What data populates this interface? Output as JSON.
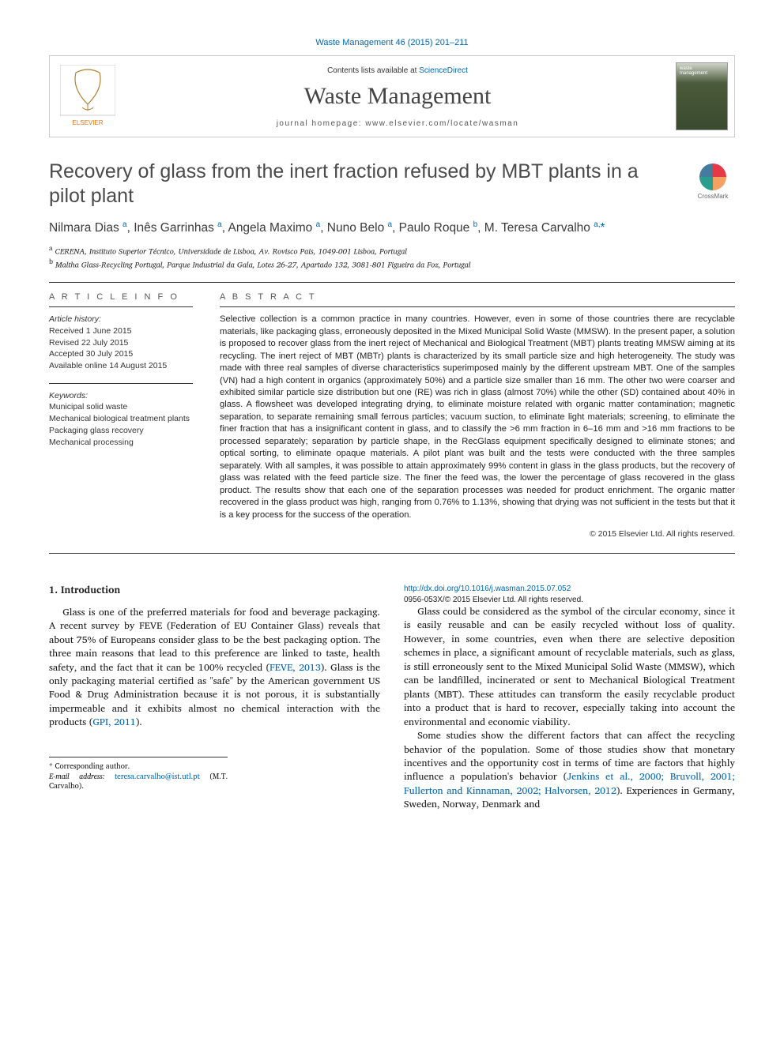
{
  "citation_top": "Waste Management 46 (2015) 201–211",
  "header": {
    "contents_prefix": "Contents lists available at ",
    "contents_link": "ScienceDirect",
    "journal_name": "Waste Management",
    "homepage_label": "journal homepage: ",
    "homepage_url": "www.elsevier.com/locate/wasman"
  },
  "title": "Recovery of glass from the inert fraction refused by MBT plants in a pilot plant",
  "crossmark_label": "CrossMark",
  "authors_html": "Nilmara Dias <sup>a</sup>, Inês Garrinhas <sup>a</sup>, Angela Maximo <sup>a</sup>, Nuno Belo <sup>a</sup>, Paulo Roque <sup>b</sup>, M. Teresa Carvalho <sup>a,</sup><span class='star'>*</span>",
  "affiliations": {
    "a": "CERENA, Instituto Superior Técnico, Universidade de Lisboa, Av. Rovisco Pais, 1049-001 Lisboa, Portugal",
    "b": "Maltha Glass-Recycling Portugal, Parque Industrial da Gala, Lotes 26-27, Apartado 132, 3081-801 Figueira da Foz, Portugal"
  },
  "article_info": {
    "heading": "A R T I C L E   I N F O",
    "history_label": "Article history:",
    "received": "Received 1 June 2015",
    "revised": "Revised 22 July 2015",
    "accepted": "Accepted 30 July 2015",
    "online": "Available online 14 August 2015",
    "keywords_label": "Keywords:",
    "keywords": [
      "Municipal solid waste",
      "Mechanical biological treatment plants",
      "Packaging glass recovery",
      "Mechanical processing"
    ]
  },
  "abstract": {
    "heading": "A B S T R A C T",
    "text": "Selective collection is a common practice in many countries. However, even in some of those countries there are recyclable materials, like packaging glass, erroneously deposited in the Mixed Municipal Solid Waste (MMSW). In the present paper, a solution is proposed to recover glass from the inert reject of Mechanical and Biological Treatment (MBT) plants treating MMSW aiming at its recycling. The inert reject of MBT (MBTr) plants is characterized by its small particle size and high heterogeneity. The study was made with three real samples of diverse characteristics superimposed mainly by the different upstream MBT. One of the samples (VN) had a high content in organics (approximately 50%) and a particle size smaller than 16 mm. The other two were coarser and exhibited similar particle size distribution but one (RE) was rich in glass (almost 70%) while the other (SD) contained about 40% in glass. A flowsheet was developed integrating drying, to eliminate moisture related with organic matter contamination; magnetic separation, to separate remaining small ferrous particles; vacuum suction, to eliminate light materials; screening, to eliminate the finer fraction that has a insignificant content in glass, and to classify the >6 mm fraction in 6–16 mm and >16 mm fractions to be processed separately; separation by particle shape, in the RecGlass equipment specifically designed to eliminate stones; and optical sorting, to eliminate opaque materials. A pilot plant was built and the tests were conducted with the three samples separately. With all samples, it was possible to attain approximately 99% content in glass in the glass products, but the recovery of glass was related with the feed particle size. The finer the feed was, the lower the percentage of glass recovered in the glass product. The results show that each one of the separation processes was needed for product enrichment. The organic matter recovered in the glass product was high, ranging from 0.76% to 1.13%, showing that drying was not sufficient in the tests but that it is a key process for the success of the operation.",
    "copyright": "© 2015 Elsevier Ltd. All rights reserved."
  },
  "body": {
    "section_number": "1.",
    "section_title": "Introduction",
    "p1": "Glass is one of the preferred materials for food and beverage packaging. A recent survey by FEVE (Federation of EU Container Glass) reveals that about 75% of Europeans consider glass to be the best packaging option. The three main reasons that lead to this preference are linked to taste, health safety, and the fact that it can be 100% recycled (",
    "p1_link": "FEVE, 2013",
    "p1_after": "). Glass is the only packaging material certified as \"safe\" by the American government US Food & Drug Administration because it is not porous, it is substantially impermeable and it exhibits almost no chemical interaction with the products (",
    "p1_link2": "GPI, 2011",
    "p1_end": ").",
    "p2": "Glass could be considered as the symbol of the circular economy, since it is easily reusable and can be easily recycled without loss of quality. However, in some countries, even when there are selective deposition schemes in place, a significant amount of recyclable materials, such as glass, is still erroneously sent to the Mixed Municipal Solid Waste (MMSW), which can be landfilled, incinerated or sent to Mechanical Biological Treatment plants (MBT). These attitudes can transform the easily recyclable product into a product that is hard to recover, especially taking into account the environmental and economic viability.",
    "p3": "Some studies show the different factors that can affect the recycling behavior of the population. Some of those studies show that monetary incentives and the opportunity cost in terms of time are factors that highly influence a population's behavior (",
    "p3_link": "Jenkins et al., 2000; Bruvoll, 2001; Fullerton and Kinnaman, 2002; Halvorsen, 2012",
    "p3_after": "). Experiences in Germany, Sweden, Norway, Denmark and"
  },
  "footnotes": {
    "corr_label": "* Corresponding author.",
    "email_label": "E-mail address:",
    "email": "teresa.carvalho@ist.utl.pt",
    "email_person": "(M.T. Carvalho)."
  },
  "doi": {
    "url": "http://dx.doi.org/10.1016/j.wasman.2015.07.052",
    "issn_line": "0956-053X/© 2015 Elsevier Ltd. All rights reserved."
  },
  "colors": {
    "link": "#0066b3",
    "text": "#1a1a1a",
    "heading_gray": "#4a4a4a"
  }
}
